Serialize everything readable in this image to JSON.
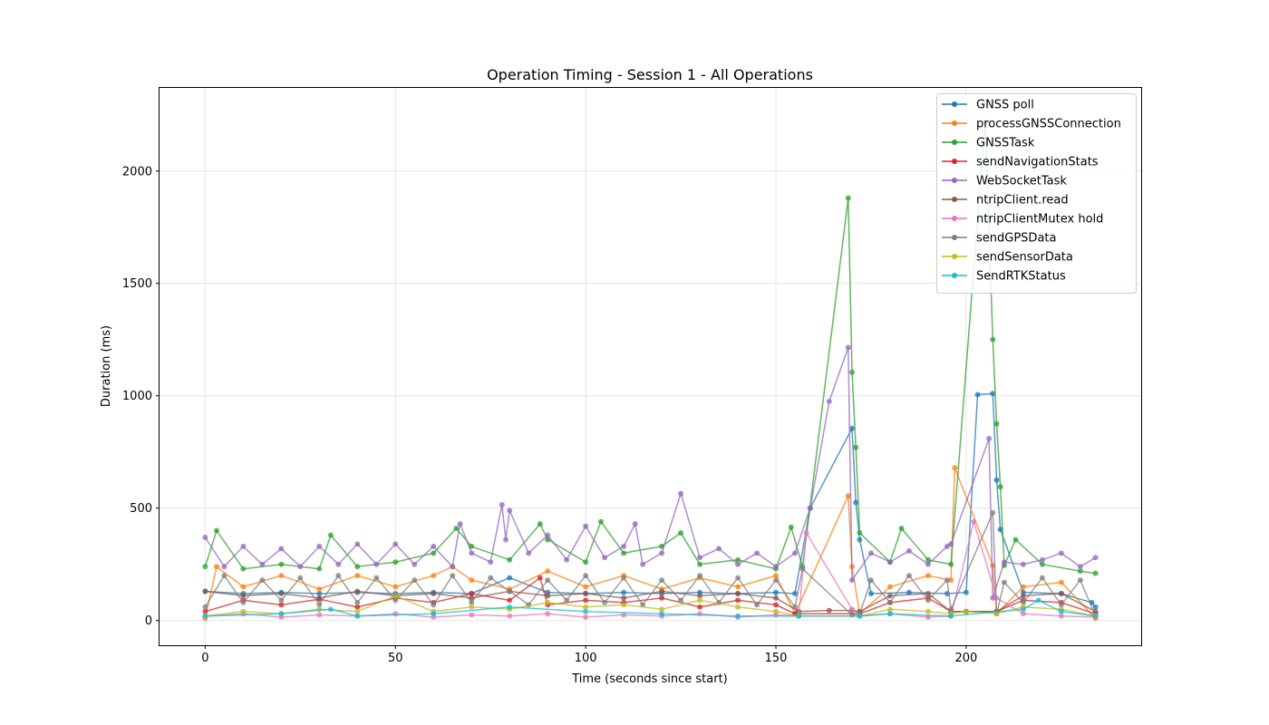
{
  "chart_data": {
    "type": "line",
    "title": "Operation Timing - Session 1 - All Operations",
    "xlabel": "Time (seconds since start)",
    "ylabel": "Duration (ms)",
    "xlim": [
      -12,
      246
    ],
    "ylim": [
      -110,
      2370
    ],
    "xticks": [
      0,
      50,
      100,
      150,
      200
    ],
    "yticks": [
      0,
      500,
      1000,
      1500,
      2000
    ],
    "grid": true,
    "legend_position": "top-right",
    "series": [
      {
        "name": "GNSS poll",
        "color": "#1f77b4",
        "x": [
          0,
          10,
          20,
          30,
          40,
          50,
          60,
          70,
          80,
          90,
          100,
          110,
          120,
          130,
          140,
          150,
          155,
          159,
          170,
          171,
          172,
          175,
          185,
          195,
          200,
          203,
          207,
          208,
          209,
          215,
          225,
          233,
          234
        ],
        "y": [
          130,
          120,
          125,
          120,
          125,
          120,
          125,
          120,
          190,
          125,
          120,
          125,
          120,
          125,
          120,
          125,
          120,
          500,
          855,
          525,
          360,
          120,
          125,
          120,
          125,
          1005,
          1010,
          625,
          405,
          125,
          120,
          80,
          60
        ]
      },
      {
        "name": "processGNSSConnection",
        "color": "#ff7f0e",
        "x": [
          0,
          3,
          10,
          20,
          30,
          40,
          50,
          60,
          65,
          70,
          80,
          90,
          100,
          110,
          120,
          130,
          140,
          150,
          155,
          169,
          170,
          172,
          180,
          190,
          196,
          197,
          207,
          208,
          215,
          225,
          234
        ],
        "y": [
          10,
          240,
          150,
          200,
          140,
          200,
          150,
          200,
          240,
          180,
          140,
          220,
          150,
          200,
          140,
          190,
          150,
          200,
          30,
          555,
          240,
          30,
          150,
          200,
          180,
          680,
          245,
          30,
          150,
          170,
          10
        ]
      },
      {
        "name": "GNSSTask",
        "color": "#2ca02c",
        "x": [
          0,
          3,
          10,
          20,
          30,
          33,
          40,
          50,
          60,
          66,
          70,
          80,
          88,
          90,
          100,
          104,
          110,
          120,
          125,
          130,
          140,
          150,
          154,
          157,
          169,
          170,
          171,
          172,
          180,
          183,
          190,
          196,
          205,
          207,
          208,
          209,
          210,
          213,
          220,
          230,
          234
        ],
        "y": [
          240,
          400,
          230,
          250,
          230,
          380,
          240,
          260,
          300,
          410,
          330,
          270,
          430,
          360,
          260,
          440,
          300,
          330,
          390,
          250,
          270,
          230,
          415,
          240,
          1880,
          1105,
          770,
          390,
          260,
          410,
          270,
          250,
          2220,
          1250,
          875,
          595,
          245,
          360,
          250,
          220,
          210
        ]
      },
      {
        "name": "sendNavigationStats",
        "color": "#d62728",
        "x": [
          0,
          10,
          20,
          30,
          40,
          50,
          60,
          70,
          80,
          88,
          90,
          100,
          110,
          120,
          130,
          140,
          150,
          155,
          172,
          180,
          190,
          196,
          200,
          208,
          215,
          225,
          234
        ],
        "y": [
          40,
          90,
          70,
          95,
          60,
          100,
          80,
          120,
          90,
          190,
          70,
          90,
          80,
          100,
          60,
          90,
          70,
          30,
          30,
          80,
          100,
          40,
          40,
          40,
          90,
          80,
          30
        ]
      },
      {
        "name": "WebSocketTask",
        "color": "#9467bd",
        "x": [
          0,
          5,
          10,
          15,
          20,
          25,
          30,
          35,
          40,
          45,
          50,
          55,
          60,
          65,
          67,
          70,
          75,
          78,
          79,
          80,
          85,
          90,
          95,
          100,
          105,
          110,
          113,
          115,
          120,
          125,
          130,
          135,
          140,
          145,
          150,
          155,
          159,
          164,
          169,
          170,
          175,
          180,
          185,
          190,
          195,
          196,
          206,
          207,
          210,
          215,
          220,
          225,
          230,
          234
        ],
        "y": [
          370,
          240,
          330,
          250,
          320,
          240,
          330,
          250,
          340,
          250,
          340,
          250,
          330,
          240,
          430,
          300,
          260,
          515,
          360,
          490,
          300,
          380,
          270,
          420,
          280,
          330,
          430,
          250,
          300,
          565,
          280,
          320,
          250,
          300,
          240,
          300,
          500,
          975,
          1215,
          180,
          300,
          260,
          310,
          250,
          330,
          340,
          810,
          100,
          260,
          250,
          270,
          300,
          240,
          280
        ]
      },
      {
        "name": "ntripClient.read",
        "color": "#8c564b",
        "x": [
          0,
          10,
          20,
          30,
          40,
          50,
          60,
          70,
          80,
          90,
          100,
          110,
          120,
          130,
          140,
          150,
          156,
          164,
          170,
          172,
          180,
          190,
          196,
          200,
          208,
          215,
          225,
          234
        ],
        "y": [
          130,
          110,
          120,
          100,
          130,
          110,
          120,
          100,
          130,
          110,
          120,
          100,
          130,
          110,
          120,
          100,
          40,
          45,
          45,
          40,
          110,
          120,
          40,
          40,
          40,
          110,
          120,
          40
        ]
      },
      {
        "name": "ntripClientMutex hold",
        "color": "#e377c2",
        "x": [
          0,
          10,
          20,
          30,
          40,
          50,
          60,
          70,
          80,
          90,
          100,
          110,
          120,
          130,
          140,
          150,
          156,
          158,
          170,
          172,
          180,
          190,
          196,
          202,
          208,
          215,
          225,
          234
        ],
        "y": [
          20,
          30,
          15,
          25,
          20,
          30,
          15,
          25,
          20,
          30,
          15,
          25,
          20,
          30,
          15,
          25,
          20,
          390,
          50,
          20,
          30,
          15,
          20,
          440,
          100,
          30,
          20,
          15
        ]
      },
      {
        "name": "sendGPSData",
        "color": "#7f7f7f",
        "x": [
          0,
          5,
          10,
          15,
          20,
          25,
          30,
          35,
          40,
          45,
          50,
          55,
          60,
          65,
          70,
          75,
          80,
          85,
          90,
          95,
          100,
          105,
          110,
          115,
          120,
          125,
          130,
          135,
          140,
          145,
          150,
          155,
          157,
          170,
          172,
          175,
          180,
          185,
          190,
          195,
          196,
          207,
          208,
          210,
          215,
          220,
          225,
          230,
          234
        ],
        "y": [
          60,
          200,
          80,
          180,
          90,
          190,
          70,
          200,
          80,
          190,
          90,
          180,
          70,
          200,
          80,
          190,
          130,
          70,
          180,
          90,
          200,
          80,
          190,
          70,
          180,
          90,
          200,
          80,
          190,
          70,
          180,
          60,
          230,
          25,
          30,
          180,
          80,
          200,
          90,
          180,
          50,
          480,
          30,
          170,
          80,
          190,
          70,
          180,
          20
        ]
      },
      {
        "name": "sendSensorData",
        "color": "#bcbd22",
        "x": [
          0,
          10,
          20,
          30,
          40,
          50,
          60,
          70,
          80,
          90,
          100,
          110,
          120,
          130,
          140,
          150,
          156,
          172,
          180,
          190,
          196,
          200,
          208,
          215,
          225,
          234
        ],
        "y": [
          20,
          40,
          30,
          50,
          40,
          110,
          40,
          60,
          50,
          80,
          60,
          70,
          50,
          90,
          60,
          40,
          20,
          20,
          50,
          40,
          30,
          40,
          30,
          60,
          50,
          20
        ]
      },
      {
        "name": "SendRTKStatus",
        "color": "#17becf",
        "x": [
          0,
          20,
          33,
          40,
          60,
          80,
          100,
          120,
          140,
          156,
          172,
          180,
          196,
          215,
          219,
          225,
          234
        ],
        "y": [
          20,
          30,
          50,
          20,
          30,
          60,
          40,
          30,
          20,
          20,
          20,
          30,
          20,
          50,
          90,
          40,
          20
        ]
      }
    ]
  }
}
